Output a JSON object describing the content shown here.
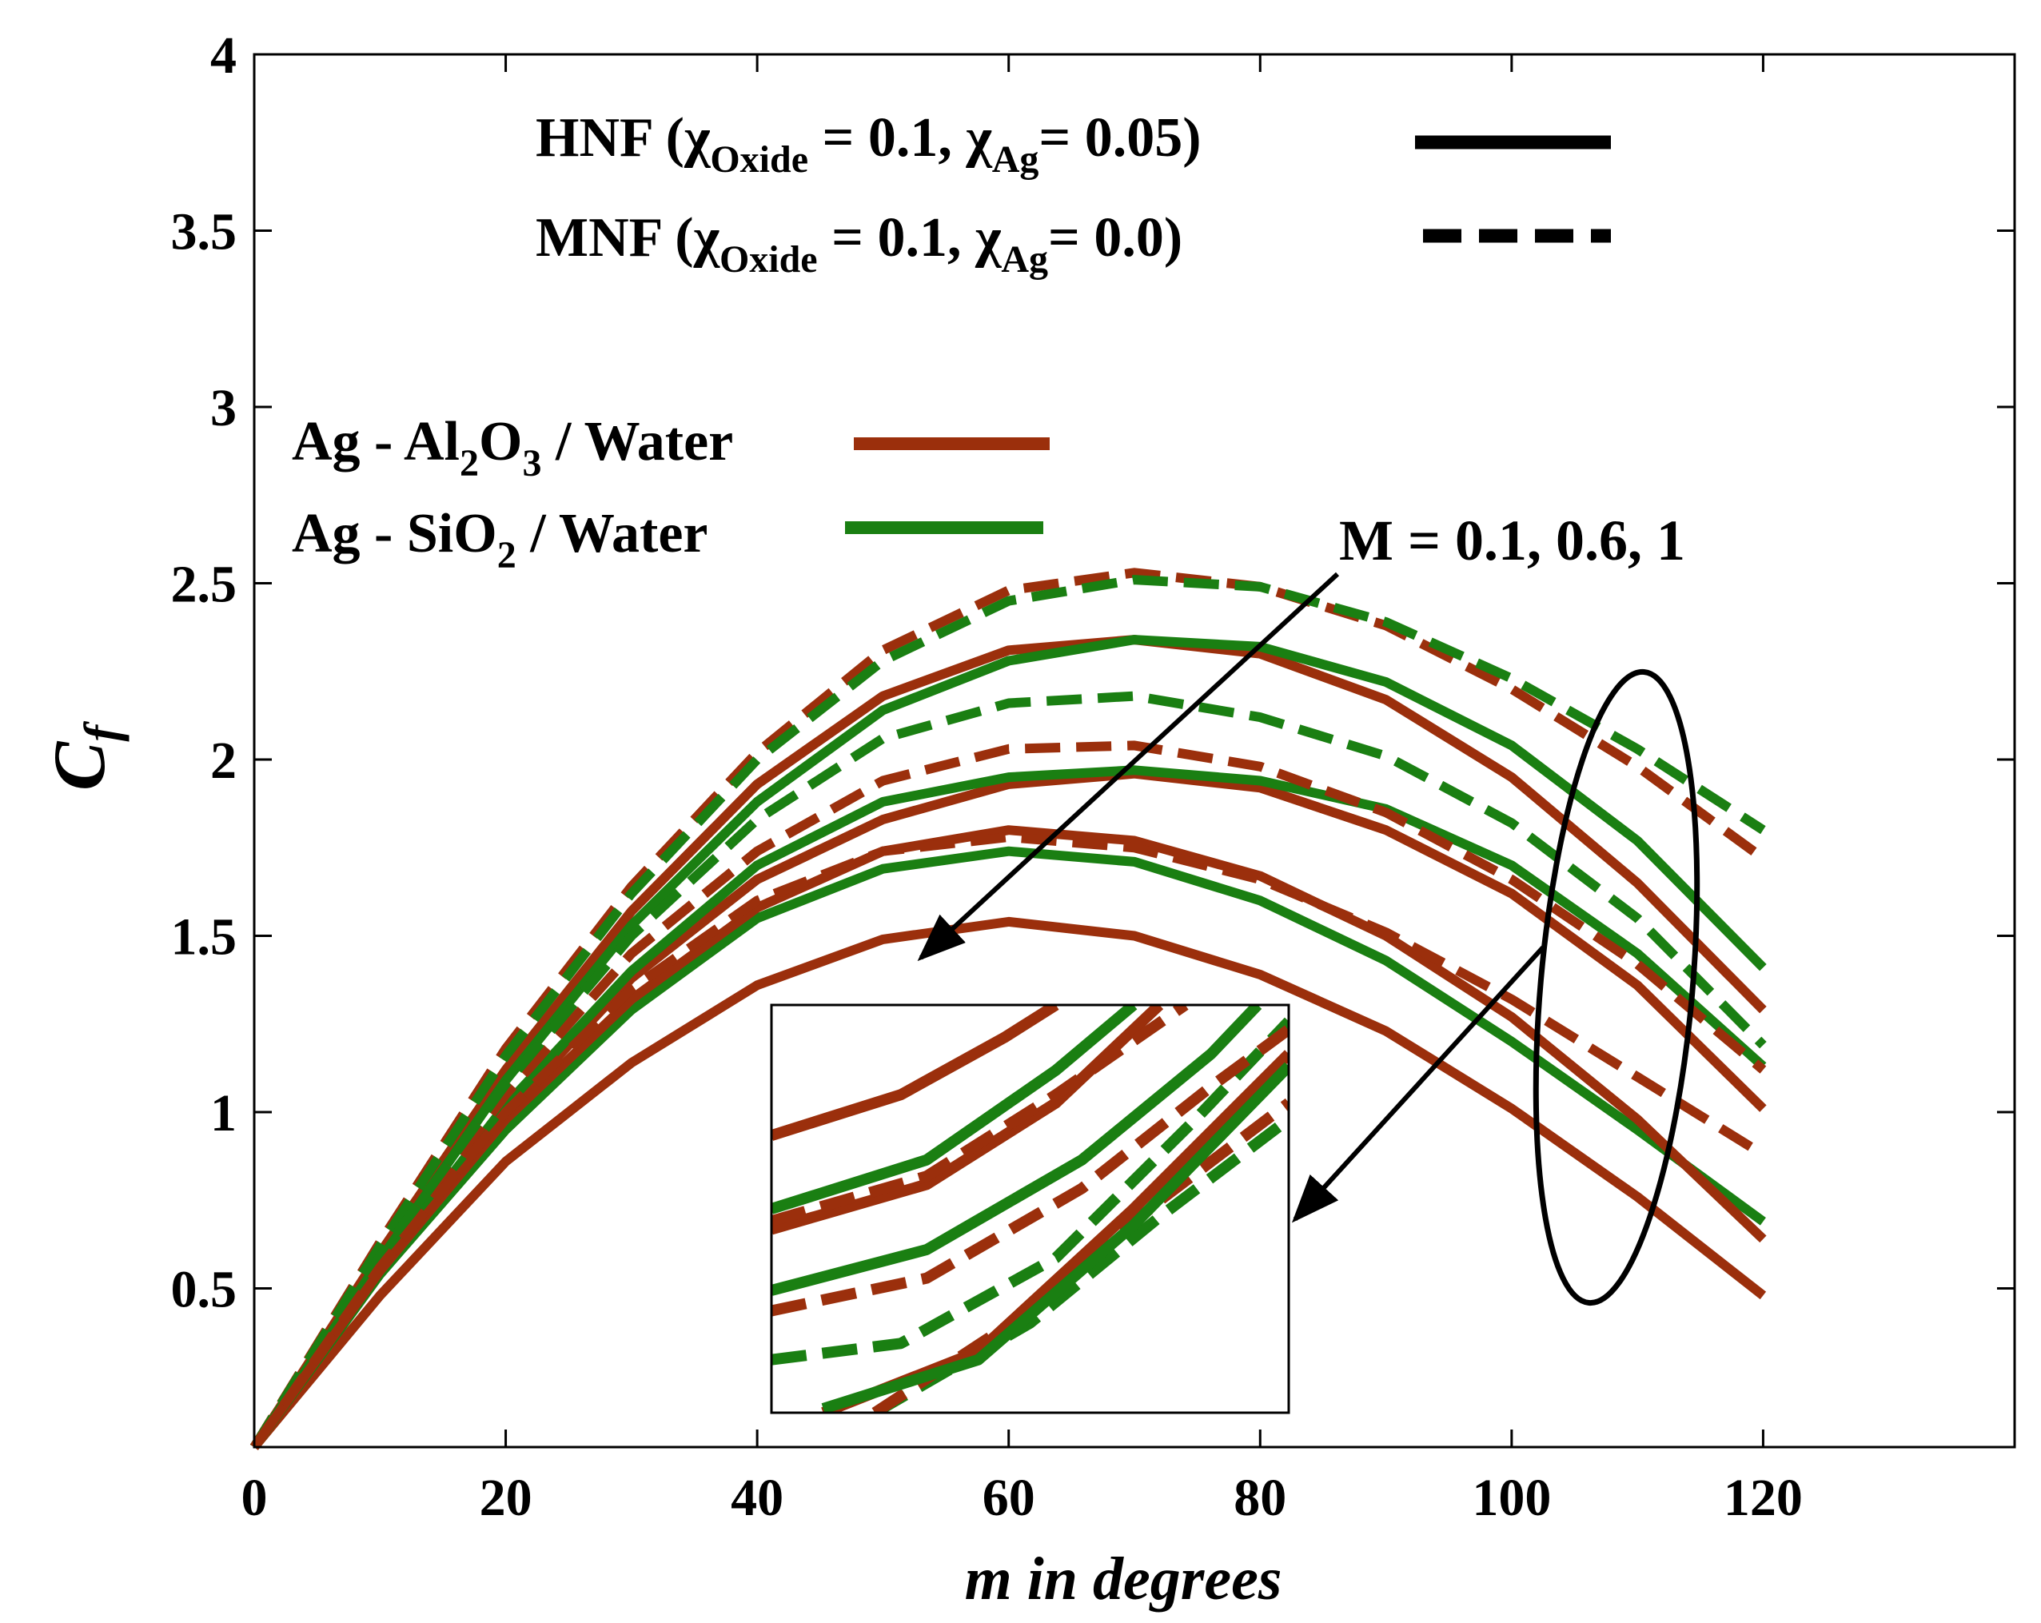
{
  "chart_data": {
    "type": "line",
    "xlabel": "m in degrees",
    "ylabel_main": "C",
    "ylabel_sub": "f",
    "xlim": [
      0,
      140
    ],
    "ylim": [
      0.05,
      4
    ],
    "xticks": [
      "0",
      "20",
      "40",
      "60",
      "80",
      "100",
      "120"
    ],
    "yticks": [
      "0.5",
      "1",
      "1.5",
      "2",
      "2.5",
      "3",
      "3.5",
      "4"
    ],
    "legend_style": {
      "hnf_prefix": "HNF (",
      "mnf_prefix": "MNF (",
      "chi": "χ",
      "oxide_sub": "Oxide",
      "eq_01": " = 0.1, ",
      "ag_sub": "Ag",
      "hnf_tail": "= 0.05)",
      "mnf_tail": "= 0.0)"
    },
    "legend_fluid": {
      "al_a": "Ag - Al",
      "al_2": "2",
      "al_b": "O",
      "al_3": "3",
      "al_c": " / Water",
      "si_a": "Ag - SiO",
      "si_2": "2",
      "si_c": " / Water"
    },
    "colors": {
      "al2o3": "#9b2f0c",
      "sio2": "#1a7f12",
      "black": "#000000"
    },
    "annotation": "M = 0.1, 0.6, 1",
    "x": [
      0,
      10,
      20,
      30,
      40,
      50,
      60,
      70,
      80,
      90,
      100,
      110,
      120
    ],
    "series": [
      {
        "name": "Ag-Al2O3 HNF M=0.1",
        "fluid": "al2o3",
        "style": "solid",
        "values": [
          0.05,
          0.6,
          1.12,
          1.57,
          1.93,
          2.18,
          2.31,
          2.34,
          2.3,
          2.17,
          1.95,
          1.65,
          1.29
        ]
      },
      {
        "name": "Ag-SiO2 HNF M=0.1",
        "fluid": "sio2",
        "style": "solid",
        "values": [
          0.05,
          0.58,
          1.09,
          1.53,
          1.88,
          2.14,
          2.28,
          2.34,
          2.32,
          2.22,
          2.04,
          1.77,
          1.41
        ]
      },
      {
        "name": "Ag-Al2O3 MNF M=0.1",
        "fluid": "al2o3",
        "style": "dashed",
        "values": [
          0.05,
          0.63,
          1.18,
          1.64,
          2.02,
          2.31,
          2.48,
          2.53,
          2.49,
          2.38,
          2.2,
          1.98,
          1.72
        ]
      },
      {
        "name": "Ag-SiO2 MNF M=0.1",
        "fluid": "sio2",
        "style": "dashed",
        "values": [
          0.05,
          0.62,
          1.16,
          1.62,
          2.0,
          2.28,
          2.45,
          2.51,
          2.49,
          2.39,
          2.23,
          2.03,
          1.8
        ]
      },
      {
        "name": "Ag-Al2O3 HNF M=0.6",
        "fluid": "al2o3",
        "style": "solid",
        "values": [
          0.05,
          0.55,
          1.0,
          1.38,
          1.66,
          1.83,
          1.93,
          1.96,
          1.92,
          1.8,
          1.62,
          1.36,
          1.01
        ]
      },
      {
        "name": "Ag-SiO2 HNF M=0.6",
        "fluid": "sio2",
        "style": "solid",
        "values": [
          0.05,
          0.56,
          1.02,
          1.4,
          1.7,
          1.88,
          1.95,
          1.97,
          1.94,
          1.86,
          1.7,
          1.45,
          1.13
        ]
      },
      {
        "name": "Ag-Al2O3 MNF M=0.6",
        "fluid": "al2o3",
        "style": "dashed",
        "values": [
          0.05,
          0.58,
          1.05,
          1.45,
          1.74,
          1.94,
          2.03,
          2.04,
          1.98,
          1.85,
          1.66,
          1.42,
          1.12
        ]
      },
      {
        "name": "Ag-SiO2 MNF M=0.6",
        "fluid": "sio2",
        "style": "dashed",
        "values": [
          0.05,
          0.59,
          1.08,
          1.5,
          1.83,
          2.06,
          2.16,
          2.18,
          2.12,
          2.01,
          1.82,
          1.55,
          1.19
        ]
      },
      {
        "name": "Ag-Al2O3 HNF M=1",
        "fluid": "al2o3",
        "style": "solid",
        "values": [
          0.05,
          0.48,
          0.86,
          1.14,
          1.36,
          1.49,
          1.54,
          1.5,
          1.39,
          1.23,
          1.01,
          0.76,
          0.48
        ]
      },
      {
        "name": "Ag-SiO2 HNF M=1",
        "fluid": "sio2",
        "style": "solid",
        "values": [
          0.05,
          0.54,
          0.95,
          1.29,
          1.55,
          1.69,
          1.74,
          1.71,
          1.6,
          1.43,
          1.2,
          0.95,
          0.69
        ]
      },
      {
        "name": "Ag-Al2O3 HNF M=1 (upper)",
        "fluid": "al2o3",
        "style": "solid",
        "values": [
          0.05,
          0.55,
          0.98,
          1.32,
          1.58,
          1.74,
          1.8,
          1.77,
          1.67,
          1.5,
          1.27,
          0.98,
          0.64
        ]
      },
      {
        "name": "Ag-Al2O3 MNF M=1",
        "fluid": "al2o3",
        "style": "dashed",
        "values": [
          0.05,
          0.56,
          1.0,
          1.35,
          1.6,
          1.74,
          1.78,
          1.75,
          1.66,
          1.51,
          1.32,
          1.1,
          0.88
        ]
      }
    ],
    "inset_series": [
      {
        "fluid": "sio2",
        "style": "dashed",
        "pts": [
          [
            0.2,
            0.0
          ],
          [
            0.5,
            0.22
          ],
          [
            0.75,
            0.48
          ],
          [
            1.0,
            0.72
          ]
        ]
      },
      {
        "fluid": "al2o3",
        "style": "dashed",
        "pts": [
          [
            0.2,
            0.0
          ],
          [
            0.5,
            0.25
          ],
          [
            0.75,
            0.52
          ],
          [
            1.0,
            0.76
          ]
        ]
      },
      {
        "fluid": "al2o3",
        "style": "solid",
        "pts": [
          [
            0.1,
            0.0
          ],
          [
            0.4,
            0.15
          ],
          [
            0.7,
            0.5
          ],
          [
            1.0,
            0.88
          ]
        ]
      },
      {
        "fluid": "sio2",
        "style": "solid",
        "pts": [
          [
            0.1,
            0.01
          ],
          [
            0.4,
            0.13
          ],
          [
            0.7,
            0.46
          ],
          [
            1.0,
            0.85
          ]
        ]
      },
      {
        "fluid": "sio2",
        "style": "dashed",
        "pts": [
          [
            0.0,
            0.13
          ],
          [
            0.25,
            0.17
          ],
          [
            0.55,
            0.38
          ],
          [
            0.82,
            0.72
          ],
          [
            1.0,
            0.96
          ]
        ]
      },
      {
        "fluid": "al2o3",
        "style": "dashed",
        "pts": [
          [
            0.0,
            0.25
          ],
          [
            0.3,
            0.33
          ],
          [
            0.6,
            0.55
          ],
          [
            0.85,
            0.8
          ],
          [
            1.0,
            0.94
          ]
        ]
      },
      {
        "fluid": "sio2",
        "style": "solid",
        "pts": [
          [
            0.0,
            0.3
          ],
          [
            0.3,
            0.4
          ],
          [
            0.6,
            0.62
          ],
          [
            0.85,
            0.88
          ],
          [
            0.94,
            1.0
          ]
        ]
      },
      {
        "fluid": "al2o3",
        "style": "solid",
        "pts": [
          [
            0.0,
            0.45
          ],
          [
            0.3,
            0.56
          ],
          [
            0.55,
            0.76
          ],
          [
            0.75,
            1.0
          ]
        ]
      },
      {
        "fluid": "al2o3",
        "style": "dashed",
        "pts": [
          [
            0.0,
            0.47
          ],
          [
            0.3,
            0.58
          ],
          [
            0.55,
            0.78
          ],
          [
            0.8,
            1.0
          ]
        ]
      },
      {
        "fluid": "sio2",
        "style": "solid",
        "pts": [
          [
            0.0,
            0.5
          ],
          [
            0.3,
            0.62
          ],
          [
            0.55,
            0.84
          ],
          [
            0.7,
            1.0
          ]
        ]
      },
      {
        "fluid": "al2o3",
        "style": "solid",
        "pts": [
          [
            0.0,
            0.68
          ],
          [
            0.25,
            0.78
          ],
          [
            0.45,
            0.92
          ],
          [
            0.55,
            1.0
          ]
        ]
      }
    ]
  }
}
